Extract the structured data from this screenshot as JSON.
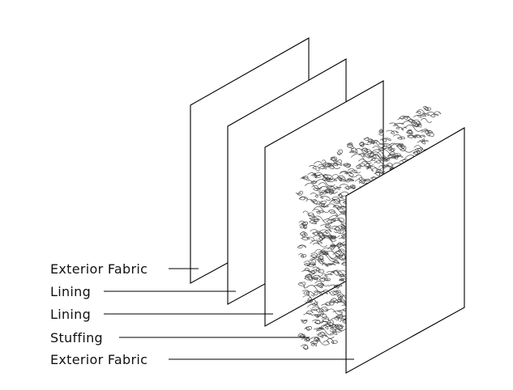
{
  "layers": [
    {
      "id": "exterior-fabric-back",
      "label": "Exterior Fabric"
    },
    {
      "id": "lining-back",
      "label": "Lining"
    },
    {
      "id": "lining-front",
      "label": "Lining"
    },
    {
      "id": "stuffing",
      "label": "Stuffing"
    },
    {
      "id": "exterior-fabric-front",
      "label": "Exterior Fabric"
    }
  ]
}
